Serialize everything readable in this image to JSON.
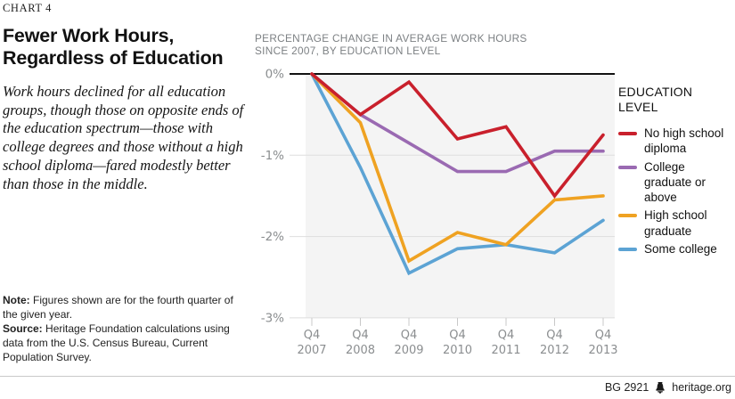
{
  "kicker": "CHART 4",
  "title_line1": "Fewer Work Hours,",
  "title_line2": "Regardless of Education",
  "description": "Work hours declined for all education groups, though those on opposite ends of the education spectrum—those with college degrees and those without a high school diploma—fared modestly better than those in the middle.",
  "note": {
    "label": "Note:",
    "text": " Figures shown are for the fourth quarter of the given year."
  },
  "source": {
    "label": "Source:",
    "text": " Heritage Foundation calculations using data from the U.S. Census Bureau, Current Population Survey."
  },
  "footer": {
    "doc_id": "BG 2921",
    "site": "heritage.org",
    "icon": "liberty-bell-icon"
  },
  "chart_data": {
    "type": "line",
    "title": "PERCENTAGE CHANGE IN AVERAGE WORK HOURS SINCE 2007, BY EDUCATION LEVEL",
    "subtitle_line1": "PERCENTAGE CHANGE IN AVERAGE WORK HOURS",
    "subtitle_line2": "SINCE 2007, BY EDUCATION LEVEL",
    "x_prefix": "Q4",
    "categories": [
      "2007",
      "2008",
      "2009",
      "2010",
      "2011",
      "2012",
      "2013"
    ],
    "y_ticks": [
      "0%",
      "-1%",
      "-2%",
      "-3%"
    ],
    "ylim": [
      -3,
      0
    ],
    "grid": true,
    "legend_position": "right",
    "legend_title_line1": "EDUCATION",
    "legend_title_line2": "LEVEL",
    "series": [
      {
        "name": "No high school diploma",
        "color": "#c9202c",
        "values": [
          0,
          -0.5,
          -0.1,
          -0.8,
          -0.65,
          -1.5,
          -0.75
        ]
      },
      {
        "name": "College graduate or above",
        "color": "#9a6ab2",
        "values": [
          0,
          -0.5,
          -0.85,
          -1.2,
          -1.2,
          -0.95,
          -0.95
        ]
      },
      {
        "name": "High school graduate",
        "color": "#efa222",
        "values": [
          0,
          -0.6,
          -2.3,
          -1.95,
          -2.1,
          -1.55,
          -1.5
        ]
      },
      {
        "name": "Some college",
        "color": "#5ca3d4",
        "values": [
          0,
          -1.15,
          -2.45,
          -2.15,
          -2.1,
          -2.2,
          -1.8
        ]
      }
    ],
    "colors": {
      "zero_line": "#121212",
      "gridline": "#dedede",
      "plot_background": "#f4f4f4",
      "axis_text": "#8b8e90"
    }
  }
}
